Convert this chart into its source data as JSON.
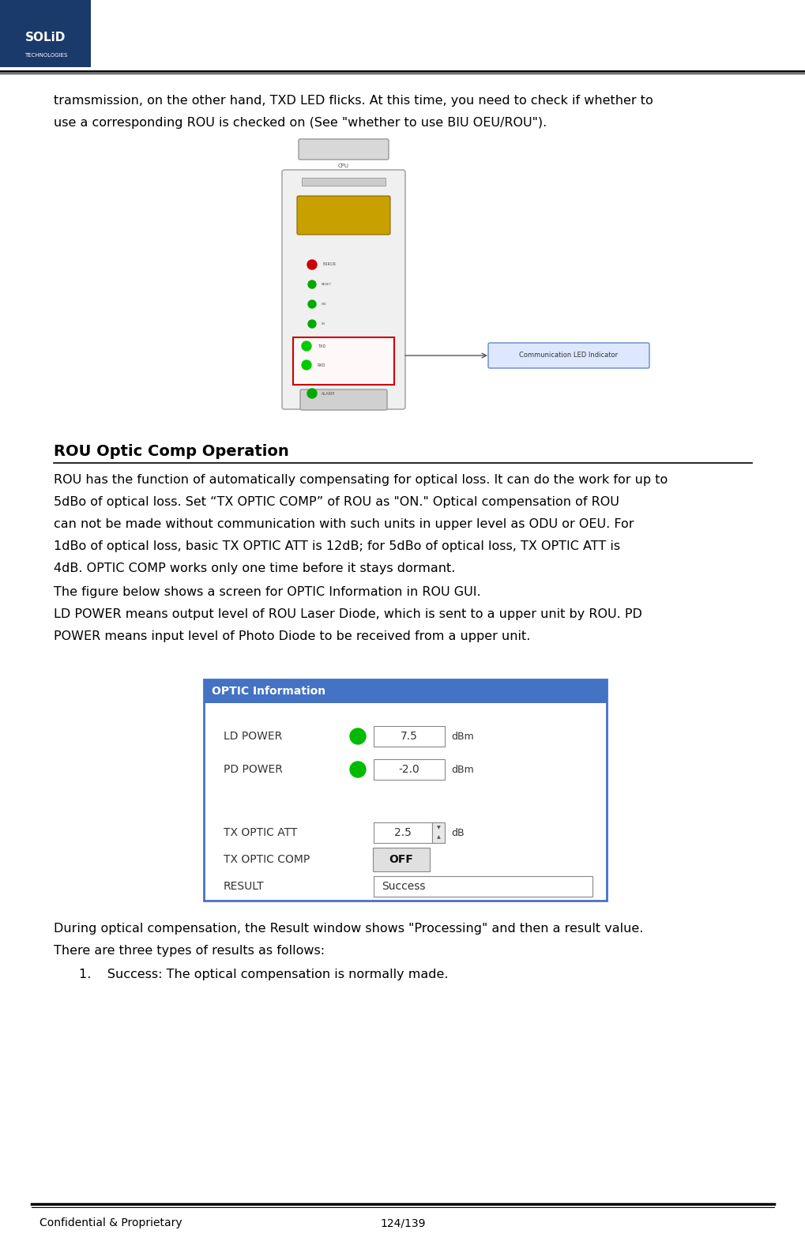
{
  "page_width": 10.2,
  "page_height": 15.62,
  "bg_color": "#ffffff",
  "header_bar_color": "#1a3a6b",
  "text_color": "#000000",
  "footer_text_left": "Confidential & Proprietary",
  "footer_text_right": "124/139",
  "intro_line1": "tramsmission, on the other hand, TXD LED flicks. At this time, you need to check if whether to",
  "intro_line2": "use a corresponding ROU is checked on (See \"whether to use BIU OEU/ROU\").",
  "section_title": "ROU Optic Comp Operation",
  "body_line1": "ROU has the function of automatically compensating for optical loss. It can do the work for up to",
  "body_line2": "5dBo of optical loss. Set “TX OPTIC COMP” of ROU as \"ON.\" Optical compensation of ROU",
  "body_line3": "can not be made without communication with such units in upper level as ODU or OEU. For",
  "body_line4": "1dBo of optical loss, basic TX OPTIC ATT is 12dB; for 5dBo of optical loss, TX OPTIC ATT is",
  "body_line5": "4dB. OPTIC COMP works only one time before it stays dormant.",
  "fig_line1": "The figure below shows a screen for OPTIC Information in ROU GUI.",
  "fig_line2": "LD POWER means output level of ROU Laser Diode, which is sent to a upper unit by ROU. PD",
  "fig_line3": "POWER means input level of Photo Diode to be received from a upper unit.",
  "optic_title": "OPTIC Information",
  "optic_title_bg": "#4472c4",
  "optic_title_color": "#ffffff",
  "optic_border_color": "#4472c4",
  "closing_line1": "During optical compensation, the Result window shows \"Processing\" and then a result value.",
  "closing_line2": "There are three types of results as follows:",
  "list_item1": "1.    Success: The optical compensation is normally made.",
  "font_size_body": 11.5,
  "font_size_title": 14,
  "font_size_footer": 10
}
